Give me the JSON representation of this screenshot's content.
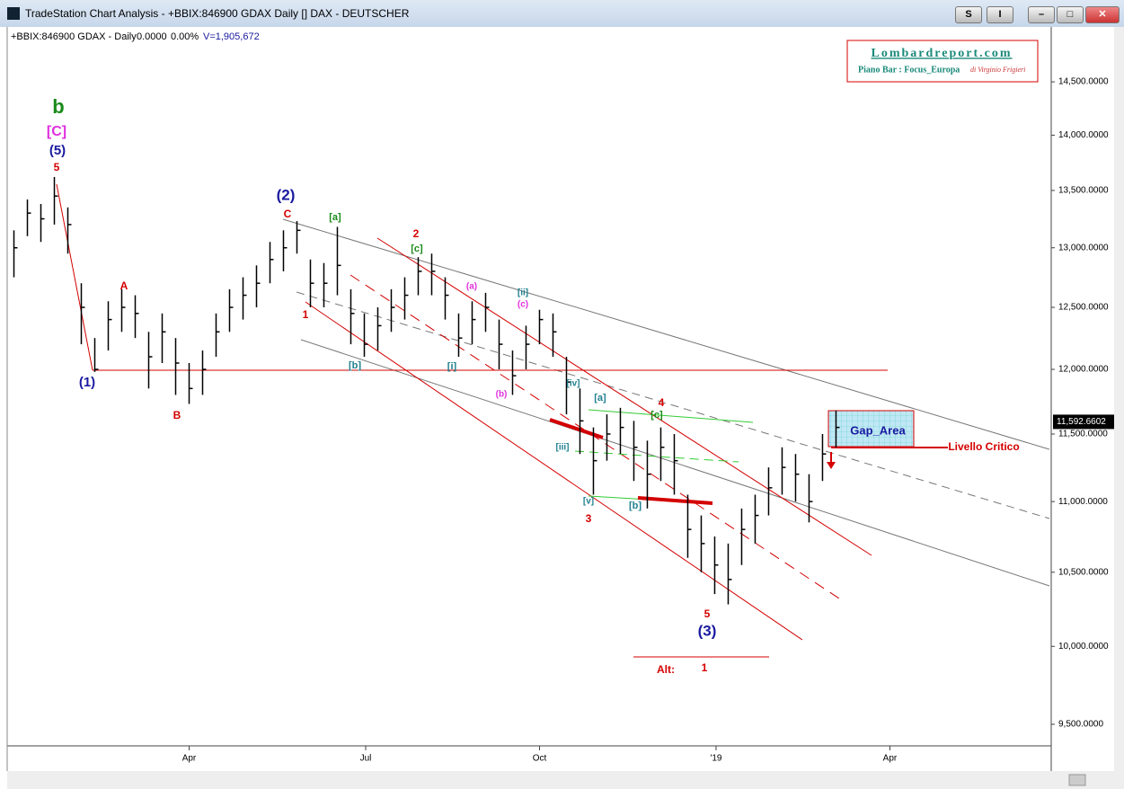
{
  "window": {
    "title": "TradeStation Chart Analysis - +BBIX:846900 GDAX Daily [] DAX - DEUTSCHER",
    "buttons": [
      "S",
      "I"
    ]
  },
  "chart_data": {
    "type": "ohlc",
    "symbol": "+BBIX:846900 GDAX - Daily",
    "change": "0.0000",
    "change_pct": "0.00%",
    "volume": "V=1,905,672",
    "log_scale": true,
    "color": "#000000",
    "ylim": [
      9366,
      14945
    ],
    "yticks": [
      {
        "value": 9500,
        "label": "9,500.0000"
      },
      {
        "value": 10000,
        "label": "10,000.0000"
      },
      {
        "value": 10500,
        "label": "10,500.0000"
      },
      {
        "value": 11000,
        "label": "11,000.0000"
      },
      {
        "value": 11500,
        "label": "11,500.0000"
      },
      {
        "value": 12000,
        "label": "12,000.0000"
      },
      {
        "value": 12500,
        "label": "12,500.0000"
      },
      {
        "value": 13000,
        "label": "13,000.0000"
      },
      {
        "value": 13500,
        "label": "13,500.0000"
      },
      {
        "value": 14000,
        "label": "14,000.0000"
      },
      {
        "value": 14500,
        "label": "14,500.0000"
      }
    ],
    "xlim": [
      0,
      77.47
    ],
    "xticks": [
      {
        "value": 13.5,
        "label": "Apr"
      },
      {
        "value": 26.6,
        "label": "Jul"
      },
      {
        "value": 39.5,
        "label": "Oct"
      },
      {
        "value": 52.6,
        "label": "'19"
      },
      {
        "value": 65.5,
        "label": "Apr"
      }
    ],
    "high": [
      13150,
      13420,
      13380,
      13620,
      13350,
      12700,
      12250,
      12550,
      12650,
      12600,
      12300,
      12450,
      12250,
      12050,
      12150,
      12450,
      12650,
      12750,
      12850,
      13050,
      13150,
      13230,
      12900,
      12870,
      13180,
      12650,
      12450,
      12500,
      12650,
      12750,
      12920,
      12950,
      12750,
      12450,
      12550,
      12620,
      12400,
      12150,
      12350,
      12480,
      12450,
      12100,
      11850,
      11550,
      11650,
      11700,
      11600,
      11450,
      11550,
      11500,
      11050,
      10900,
      10750,
      10700,
      10950,
      11050,
      11250,
      11400,
      11350,
      11200,
      11500,
      11680
    ],
    "low": [
      12750,
      13100,
      13050,
      13200,
      12950,
      12200,
      11980,
      12150,
      12300,
      12250,
      11850,
      12050,
      11800,
      11730,
      11800,
      12100,
      12300,
      12400,
      12500,
      12700,
      12800,
      12950,
      12500,
      12500,
      12600,
      12200,
      12100,
      12150,
      12300,
      12400,
      12600,
      12600,
      12400,
      12100,
      12200,
      12300,
      12000,
      11800,
      12000,
      12200,
      12100,
      11650,
      11350,
      11050,
      11300,
      11350,
      11150,
      10950,
      11150,
      11050,
      10600,
      10500,
      10350,
      10280,
      10550,
      10700,
      10900,
      11050,
      11000,
      10850,
      11150,
      11400
    ],
    "close": [
      13000,
      13300,
      13250,
      13450,
      13200,
      12500,
      12000,
      12400,
      12500,
      12450,
      12100,
      12300,
      12050,
      11850,
      12000,
      12300,
      12500,
      12600,
      12700,
      12900,
      13000,
      13150,
      12700,
      12700,
      12850,
      12450,
      12200,
      12350,
      12500,
      12600,
      12800,
      12800,
      12600,
      12250,
      12400,
      12500,
      12200,
      11950,
      12200,
      12400,
      12300,
      11900,
      11600,
      11300,
      11500,
      11550,
      11400,
      11200,
      11400,
      11300,
      10800,
      10700,
      10550,
      10450,
      10800,
      10900,
      11100,
      11250,
      11200,
      11000,
      11350,
      11550
    ],
    "last_price": {
      "value": 11592.6602,
      "label": "11,592.6602"
    },
    "annotations": [
      {
        "text": "b",
        "color": "#1a8a1a"
      },
      {
        "text": "[C]",
        "color": "#e030e0"
      },
      {
        "text": "(5)",
        "color": "#1a1aa0"
      },
      {
        "text": "5",
        "color": "#d40000"
      },
      {
        "text": "(1)",
        "color": "#1a1aa0"
      },
      {
        "text": "A",
        "color": "#d40000"
      },
      {
        "text": "B",
        "color": "#d40000"
      },
      {
        "text": "(2)",
        "color": "#1a1aa0"
      },
      {
        "text": "C",
        "color": "#d40000"
      },
      {
        "text": "1",
        "color": "#d40000"
      },
      {
        "text": "[a]",
        "color": "#1a8a1a"
      },
      {
        "text": "2",
        "color": "#d40000"
      },
      {
        "text": "[c]",
        "color": "#1a8a1a"
      },
      {
        "text": "[b]",
        "color": "#20808f"
      },
      {
        "text": "[i]",
        "color": "#20808f"
      },
      {
        "text": "(a)",
        "color": "#e030e0"
      },
      {
        "text": "(b)",
        "color": "#e030e0"
      },
      {
        "text": "[ii]",
        "color": "#20808f"
      },
      {
        "text": "(c)",
        "color": "#e030e0"
      },
      {
        "text": "[iv]",
        "color": "#20808f"
      },
      {
        "text": "[a]",
        "color": "#20808f"
      },
      {
        "text": "[iii]",
        "color": "#20808f"
      },
      {
        "text": "[v]",
        "color": "#20808f"
      },
      {
        "text": "3",
        "color": "#d40000"
      },
      {
        "text": "[b]",
        "color": "#20808f"
      },
      {
        "text": "4",
        "color": "#d40000"
      },
      {
        "text": "[c]",
        "color": "#1a8a1a"
      },
      {
        "text": "5",
        "color": "#d40000"
      },
      {
        "text": "(3)",
        "color": "#1a1aa0"
      },
      {
        "text": "Alt:",
        "color": "#d40000"
      },
      {
        "text": "1",
        "color": "#d40000"
      },
      {
        "text": "Gap_Area",
        "color": "#1a1aa0"
      },
      {
        "text": "Livello Critico",
        "color": "#d40000"
      }
    ]
  },
  "logo": {
    "site": "Lombardreport.com",
    "line": "Piano Bar : Focus_Europa",
    "author": "di Virginio Frigieri"
  }
}
